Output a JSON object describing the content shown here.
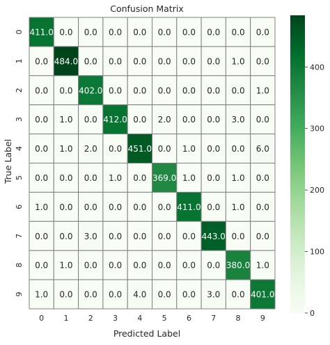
{
  "chart_data": {
    "type": "heatmap",
    "title": "Confusion Matrix",
    "xlabel": "Predicted Label",
    "ylabel": "True Label",
    "x_categories": [
      "0",
      "1",
      "2",
      "3",
      "4",
      "5",
      "6",
      "7",
      "8",
      "9"
    ],
    "y_categories": [
      "0",
      "1",
      "2",
      "3",
      "4",
      "5",
      "6",
      "7",
      "8",
      "9"
    ],
    "values": [
      [
        411,
        0,
        0,
        0,
        0,
        0,
        0,
        0,
        0,
        0
      ],
      [
        0,
        484,
        0,
        0,
        0,
        0,
        0,
        0,
        1,
        0
      ],
      [
        0,
        0,
        402,
        0,
        0,
        0,
        0,
        0,
        0,
        1
      ],
      [
        0,
        1,
        0,
        412,
        0,
        2,
        0,
        0,
        3,
        0
      ],
      [
        0,
        1,
        2,
        0,
        451,
        0,
        1,
        0,
        0,
        6
      ],
      [
        0,
        0,
        0,
        1,
        0,
        369,
        1,
        0,
        1,
        0
      ],
      [
        1,
        0,
        0,
        0,
        0,
        0,
        411,
        0,
        1,
        0
      ],
      [
        0,
        0,
        3,
        0,
        0,
        0,
        0,
        443,
        0,
        0
      ],
      [
        0,
        1,
        0,
        0,
        0,
        0,
        0,
        0,
        380,
        1
      ],
      [
        1,
        0,
        0,
        0,
        4,
        0,
        0,
        3,
        0,
        401
      ]
    ],
    "value_format": "0.0",
    "colormap": "Greens",
    "color_low": "#f7fcf5",
    "color_high": "#00441b",
    "vmin": 0,
    "vmax": 484,
    "colorbar_ticks": [
      "0",
      "100",
      "200",
      "300",
      "400"
    ],
    "colorbar_tick_values": [
      0,
      100,
      200,
      300,
      400
    ],
    "text_color_dark": "#262626",
    "text_color_light": "#ffffff",
    "cell_border_color": "#808080"
  }
}
